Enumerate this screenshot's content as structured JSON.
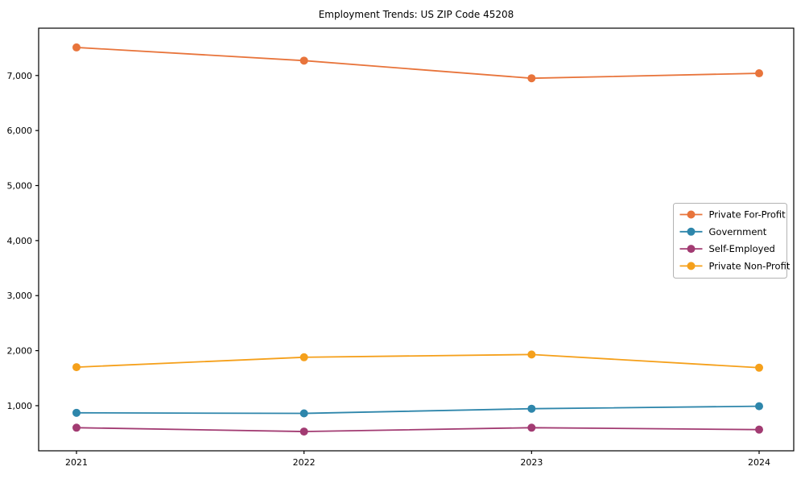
{
  "title": "Employment Trends: US ZIP Code 45208",
  "chart_data": {
    "type": "line",
    "x": [
      2021,
      2022,
      2023,
      2024
    ],
    "series": [
      {
        "name": "Private For-Profit",
        "color": "#e8743b",
        "values": [
          7510,
          7270,
          6950,
          7040
        ]
      },
      {
        "name": "Government",
        "color": "#2e86ab",
        "values": [
          870,
          860,
          945,
          990
        ]
      },
      {
        "name": "Self-Employed",
        "color": "#a23b72",
        "values": [
          600,
          530,
          600,
          565
        ]
      },
      {
        "name": "Private Non-Profit",
        "color": "#f5a01b",
        "values": [
          1700,
          1880,
          1930,
          1690
        ]
      }
    ],
    "xlabel": "",
    "ylabel": "",
    "ylim": [
      180,
      7860
    ],
    "yticks": [
      1000,
      2000,
      3000,
      4000,
      5000,
      6000,
      7000
    ],
    "xticks": [
      "2021",
      "2022",
      "2023",
      "2024"
    ],
    "grid": false,
    "legend_position": "center right",
    "axis_color": "#000000",
    "background_color": "#ffffff",
    "legend_border_color": "#b3b3b3"
  }
}
